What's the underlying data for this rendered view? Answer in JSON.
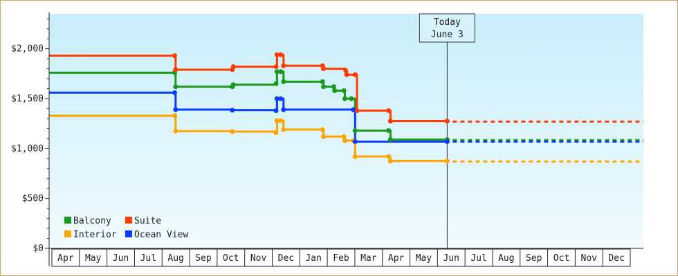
{
  "chart_data": {
    "type": "line",
    "step": true,
    "grid": false,
    "legend_placement": "bottom-left",
    "y_axis": {
      "min": 0,
      "max": 2350,
      "ticks": [
        0,
        500,
        1000,
        1500,
        2000
      ],
      "tick_labels": [
        "$0",
        "$500",
        "$1,000",
        "$1,500",
        "$2,000"
      ]
    },
    "x_axis": {
      "start": "2024-04-01",
      "end": "2025-12-31",
      "month_labels": [
        "Apr",
        "May",
        "Jun",
        "Jul",
        "Aug",
        "Sep",
        "Oct",
        "Nov",
        "Dec",
        "Jan",
        "Feb",
        "Mar",
        "Apr",
        "May",
        "Jun",
        "Jul",
        "Aug",
        "Sep",
        "Oct",
        "Nov",
        "Dec"
      ]
    },
    "today": {
      "date": "2025-06-03",
      "label_line1": "Today",
      "label_line2": "June 3"
    },
    "series": [
      {
        "name": "Balcony",
        "color": "#1a9a1a",
        "points": [
          [
            "2024-04-01",
            1760
          ],
          [
            "2024-08-14",
            1760
          ],
          [
            "2024-08-15",
            1620
          ],
          [
            "2024-10-15",
            1620
          ],
          [
            "2024-10-16",
            1640
          ],
          [
            "2024-12-01",
            1650
          ],
          [
            "2024-12-02",
            1770
          ],
          [
            "2024-12-06",
            1770
          ],
          [
            "2024-12-09",
            1670
          ],
          [
            "2025-01-20",
            1670
          ],
          [
            "2025-01-21",
            1620
          ],
          [
            "2025-02-01",
            1620
          ],
          [
            "2025-02-02",
            1580
          ],
          [
            "2025-02-12",
            1580
          ],
          [
            "2025-02-13",
            1500
          ],
          [
            "2025-02-20",
            1500
          ],
          [
            "2025-02-24",
            1180
          ],
          [
            "2025-04-01",
            1180
          ],
          [
            "2025-04-03",
            1090
          ],
          [
            "2025-06-03",
            1090
          ]
        ],
        "projection": 1085
      },
      {
        "name": "Suite",
        "color": "#ff3c00",
        "points": [
          [
            "2024-04-01",
            1930
          ],
          [
            "2024-08-14",
            1930
          ],
          [
            "2024-08-15",
            1790
          ],
          [
            "2024-10-15",
            1790
          ],
          [
            "2024-10-16",
            1820
          ],
          [
            "2024-12-01",
            1820
          ],
          [
            "2024-12-02",
            1940
          ],
          [
            "2024-12-06",
            1940
          ],
          [
            "2024-12-09",
            1830
          ],
          [
            "2025-01-20",
            1830
          ],
          [
            "2025-01-21",
            1800
          ],
          [
            "2025-02-14",
            1780
          ],
          [
            "2025-02-15",
            1740
          ],
          [
            "2025-02-24",
            1740
          ],
          [
            "2025-02-26",
            1380
          ],
          [
            "2025-04-01",
            1380
          ],
          [
            "2025-04-03",
            1275
          ],
          [
            "2025-06-03",
            1275
          ]
        ],
        "projection": 1270
      },
      {
        "name": "Interior",
        "color": "#ffa500",
        "points": [
          [
            "2024-04-01",
            1330
          ],
          [
            "2024-08-14",
            1330
          ],
          [
            "2024-08-15",
            1175
          ],
          [
            "2024-10-15",
            1170
          ],
          [
            "2024-12-01",
            1160
          ],
          [
            "2024-12-02",
            1280
          ],
          [
            "2024-12-06",
            1280
          ],
          [
            "2024-12-09",
            1190
          ],
          [
            "2025-01-20",
            1190
          ],
          [
            "2025-01-21",
            1120
          ],
          [
            "2025-02-12",
            1120
          ],
          [
            "2025-02-13",
            1080
          ],
          [
            "2025-02-22",
            1080
          ],
          [
            "2025-02-24",
            920
          ],
          [
            "2025-04-01",
            920
          ],
          [
            "2025-04-03",
            875
          ],
          [
            "2025-06-03",
            875
          ]
        ],
        "projection": 870
      },
      {
        "name": "Ocean View",
        "color": "#0a3cff",
        "points": [
          [
            "2024-04-01",
            1560
          ],
          [
            "2024-08-14",
            1560
          ],
          [
            "2024-08-15",
            1390
          ],
          [
            "2024-10-15",
            1385
          ],
          [
            "2024-12-01",
            1380
          ],
          [
            "2024-12-02",
            1500
          ],
          [
            "2024-12-06",
            1500
          ],
          [
            "2024-12-09",
            1390
          ],
          [
            "2025-02-22",
            1390
          ],
          [
            "2025-02-24",
            1070
          ],
          [
            "2025-06-03",
            1070
          ]
        ],
        "projection": 1070
      }
    ]
  }
}
